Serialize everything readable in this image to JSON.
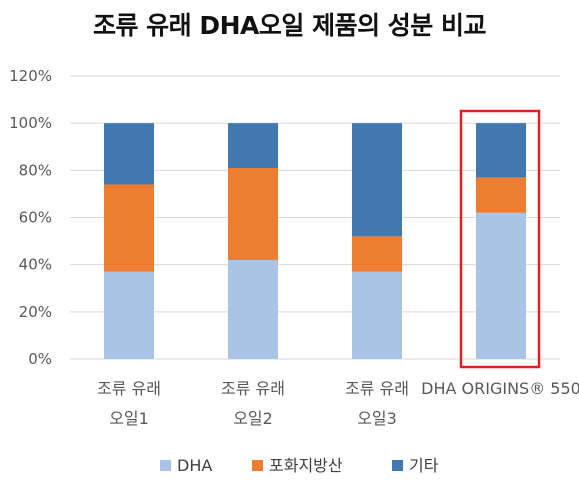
{
  "chart_data": {
    "type": "bar",
    "stacked": true,
    "title": "조류 유래 DHA오일 제품의 성분 비교",
    "categories": [
      [
        "조류 유래",
        "오일1"
      ],
      [
        "조류 유래",
        "오일2"
      ],
      [
        "조류 유래",
        "오일3"
      ],
      [
        "DHA ORIGINS® 550"
      ]
    ],
    "series": [
      {
        "name": "DHA",
        "color": "#a9c4e4",
        "values": [
          37,
          42,
          37,
          62
        ]
      },
      {
        "name": "포화지방산",
        "color": "#ed7d31",
        "values": [
          37,
          39,
          15,
          15
        ]
      },
      {
        "name": "기타",
        "color": "#4178b0",
        "values": [
          26,
          19,
          48,
          23
        ]
      }
    ],
    "ylim": [
      0,
      120
    ],
    "yticks": [
      "0%",
      "20%",
      "40%",
      "60%",
      "80%",
      "100%",
      "120%"
    ],
    "grid": true,
    "legend": "bottom",
    "highlight": {
      "category_index": 3,
      "color": "#e31f26"
    }
  }
}
